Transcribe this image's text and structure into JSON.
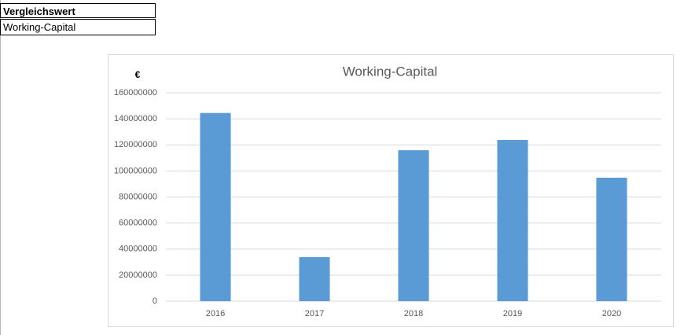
{
  "table": {
    "rows": [
      [
        "Vergleichswert"
      ],
      [
        "Working-Capital"
      ]
    ]
  },
  "chart_data": {
    "type": "bar",
    "title": "Working-Capital",
    "y_label": "€",
    "categories": [
      "2016",
      "2017",
      "2018",
      "2019",
      "2020"
    ],
    "values": [
      144500000,
      33800000,
      115900000,
      123800000,
      94800000
    ],
    "color": "#5b9bd5",
    "ylim": [
      0,
      160000000
    ],
    "yticks": [
      0,
      20000000,
      40000000,
      60000000,
      80000000,
      100000000,
      120000000,
      140000000,
      160000000
    ],
    "grid": true
  }
}
